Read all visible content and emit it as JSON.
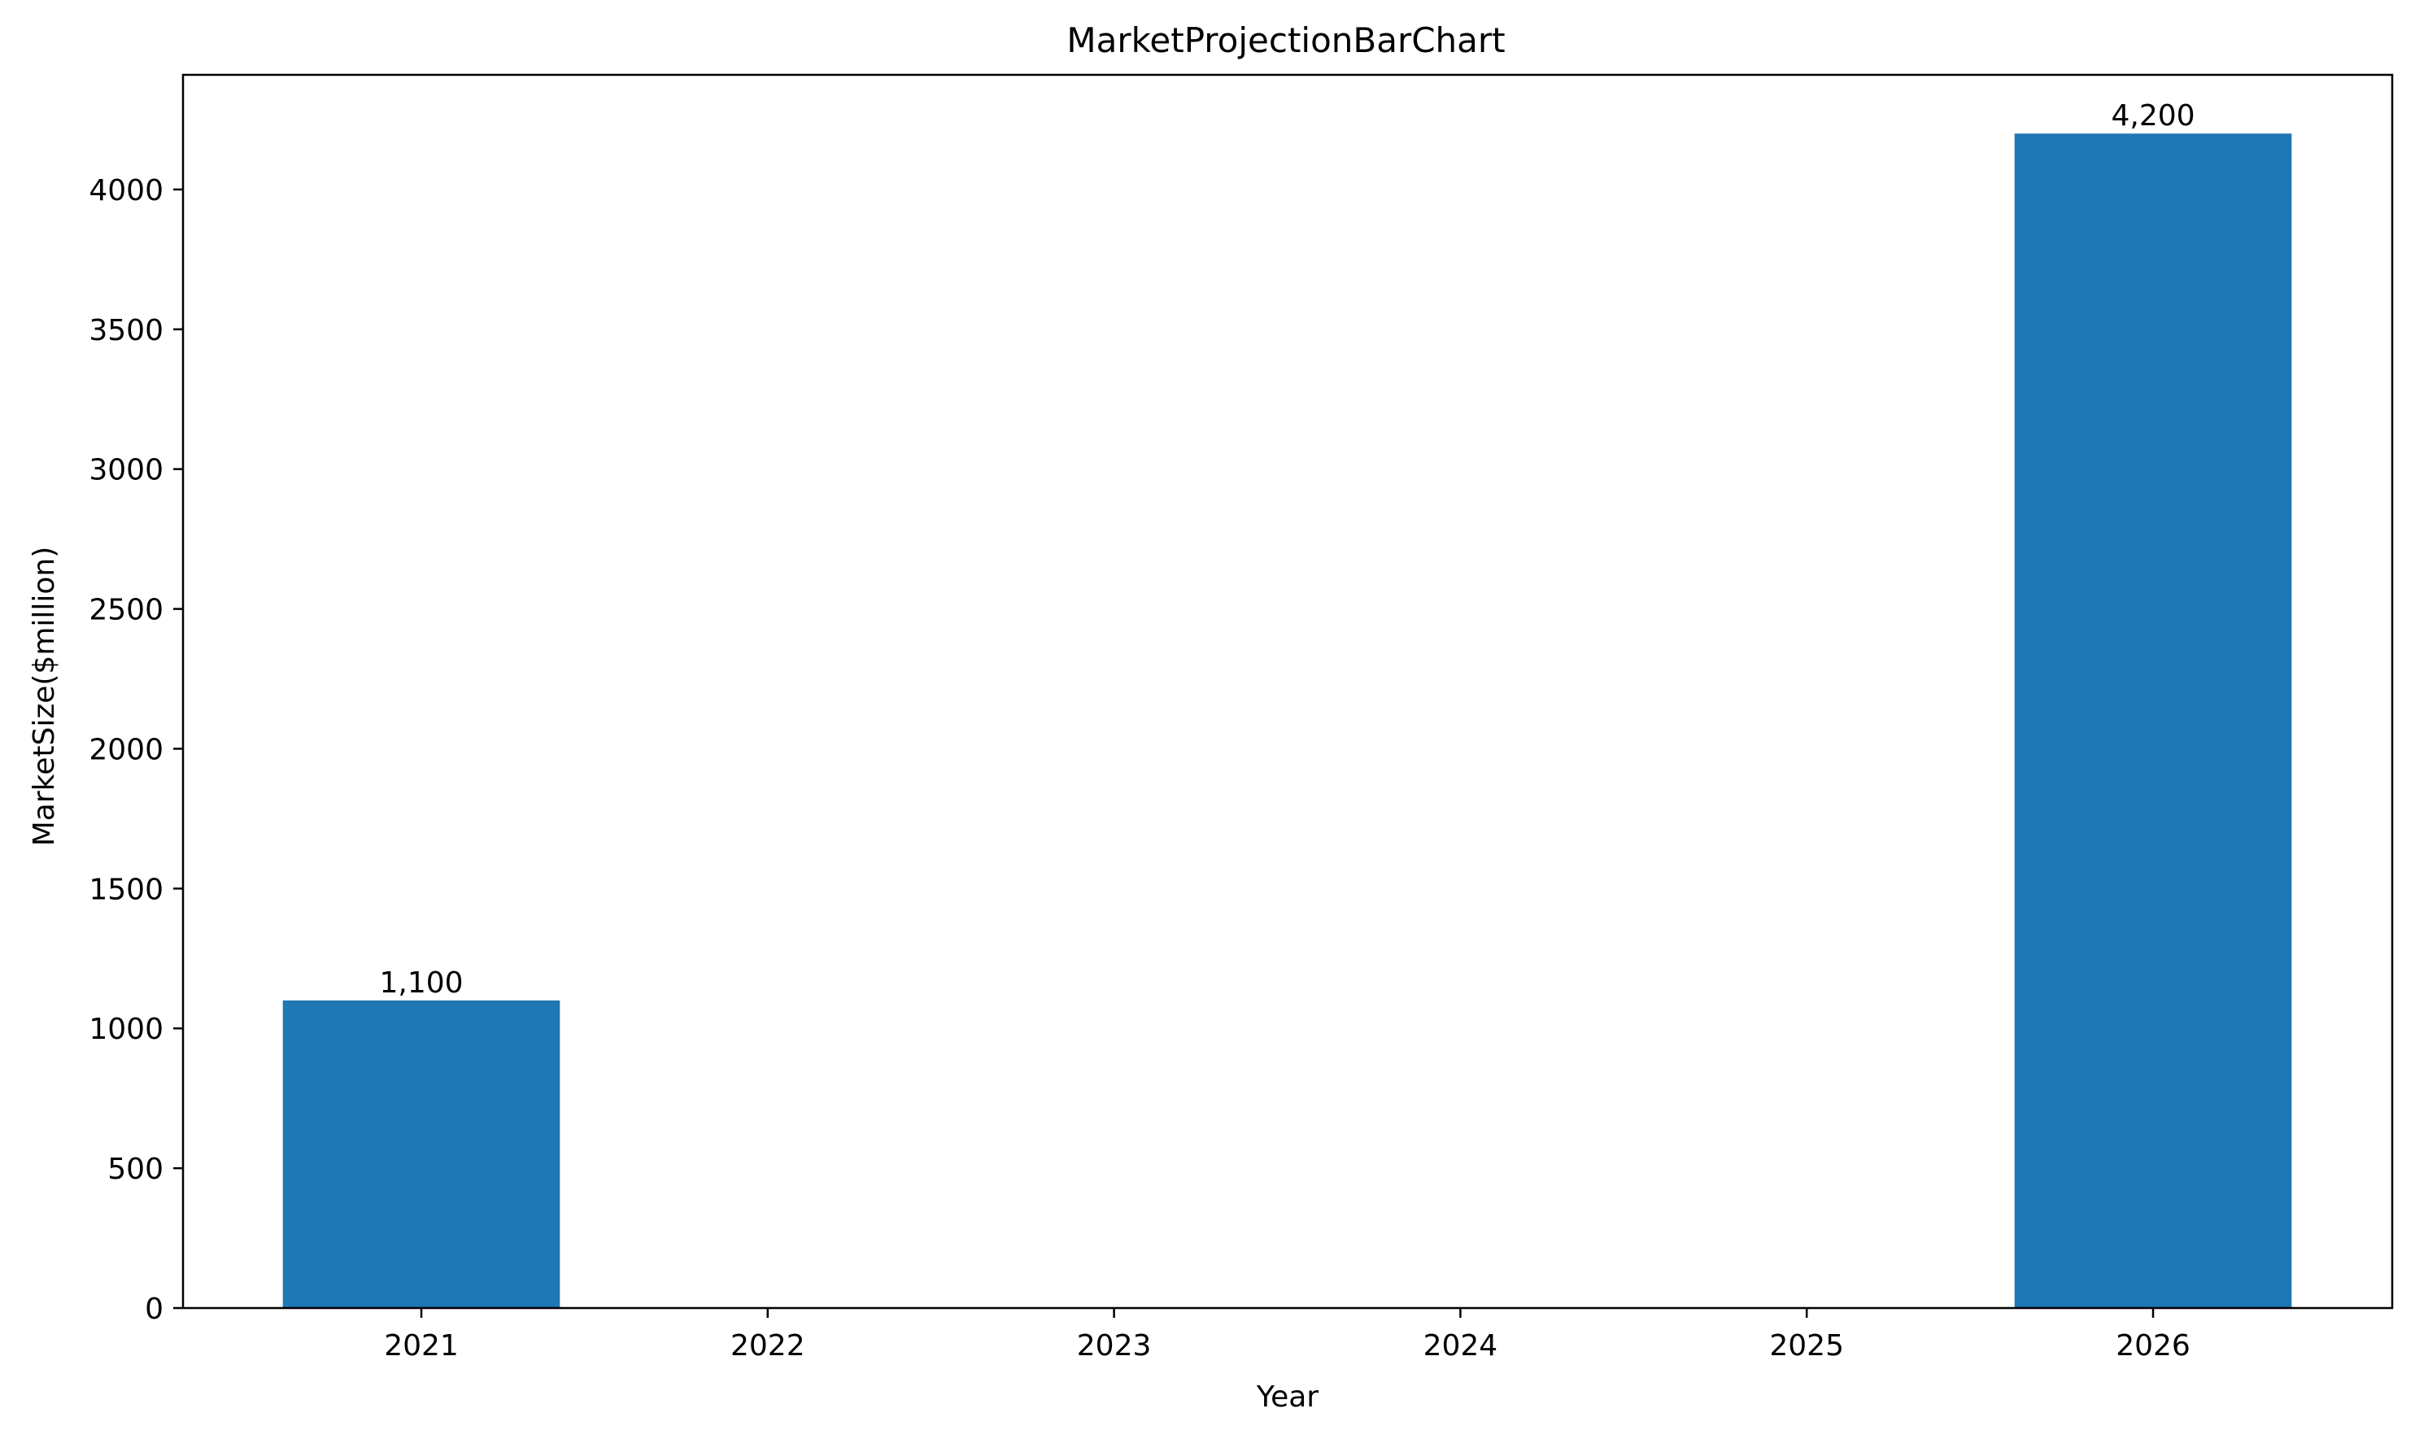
{
  "chart_data": {
    "type": "bar",
    "title": "MarketProjectionBarChart",
    "xlabel": "Year",
    "ylabel": "MarketSize($million)",
    "categories": [
      "2021",
      "2022",
      "2023",
      "2024",
      "2025",
      "2026"
    ],
    "values": [
      1100,
      0,
      0,
      0,
      0,
      4200
    ],
    "data_labels": [
      "1,100",
      "",
      "",
      "",
      "",
      "4,200"
    ],
    "ylim": [
      0,
      4410
    ],
    "yticks": [
      0,
      500,
      1000,
      1500,
      2000,
      2500,
      3000,
      3500,
      4000
    ],
    "grid": false,
    "legend": "none",
    "colors": {
      "bar": "#1f77b4",
      "axis": "#000000",
      "text": "#000000"
    }
  }
}
